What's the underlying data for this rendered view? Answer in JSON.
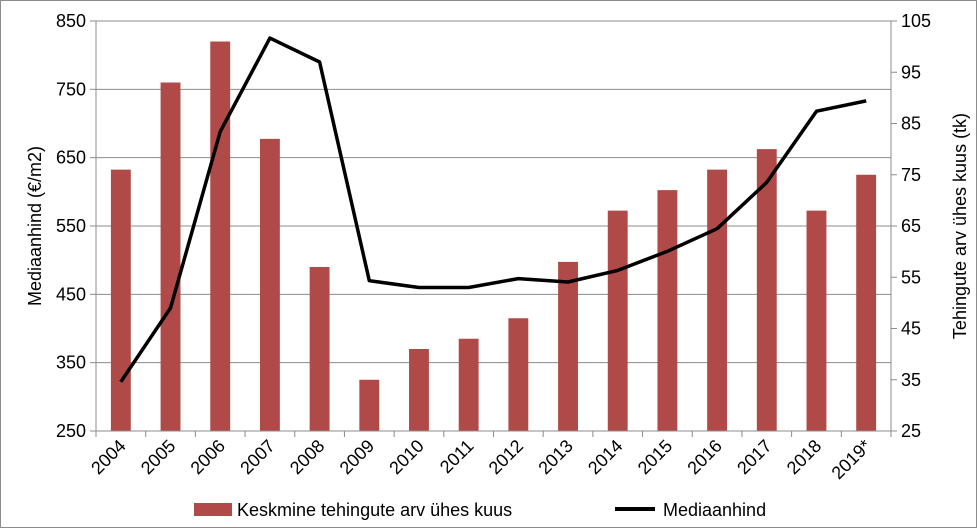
{
  "chart_data": {
    "type": "bar",
    "categories": [
      "2004",
      "2005",
      "2006",
      "2007",
      "2008",
      "2009",
      "2010",
      "2011",
      "2012",
      "2013",
      "2014",
      "2015",
      "2016",
      "2017",
      "2018",
      "2019*"
    ],
    "series": [
      {
        "name": "Keskmine tehingute arv ühes kuus",
        "type": "bar",
        "axis": "right",
        "color": "#b04a48",
        "values": [
          76,
          93,
          101,
          82,
          57,
          35,
          41,
          43,
          47,
          58,
          68,
          72,
          76,
          80,
          68,
          75
        ]
      },
      {
        "name": "Mediaanhind",
        "type": "line",
        "axis": "left",
        "color": "#000000",
        "values": [
          322,
          430,
          688,
          825,
          790,
          470,
          460,
          460,
          473,
          468,
          485,
          513,
          546,
          614,
          718,
          733
        ]
      }
    ],
    "y_left": {
      "label": "Mediaanhind (€/m2)",
      "ticks": [
        "250",
        "350",
        "450",
        "550",
        "650",
        "750",
        "850"
      ],
      "range": [
        250,
        850
      ]
    },
    "y_right": {
      "label": "Tehingute arv ühes kuus (tk)",
      "ticks": [
        "25",
        "35",
        "45",
        "55",
        "65",
        "75",
        "85",
        "95",
        "105"
      ],
      "range": [
        25,
        105
      ]
    },
    "grid": "horizontal",
    "legend_position": "bottom"
  }
}
